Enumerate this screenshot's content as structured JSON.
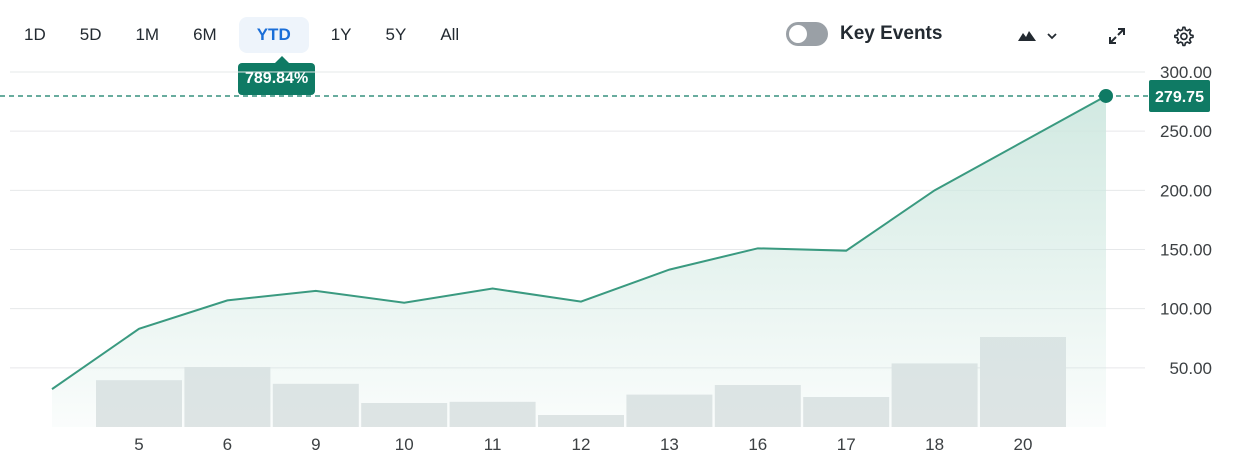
{
  "range_tabs": [
    {
      "label": "1D",
      "active": false
    },
    {
      "label": "5D",
      "active": false
    },
    {
      "label": "1M",
      "active": false
    },
    {
      "label": "6M",
      "active": false
    },
    {
      "label": "YTD",
      "active": true
    },
    {
      "label": "1Y",
      "active": false
    },
    {
      "label": "5Y",
      "active": false
    },
    {
      "label": "All",
      "active": false
    }
  ],
  "change_badge": "789.84%",
  "key_events": {
    "label": "Key Events",
    "enabled": false
  },
  "toolbar_icons": [
    "mountain-chart-icon",
    "chevron-down-icon",
    "expand-icon",
    "gear-icon"
  ],
  "colors": {
    "line": "#3a9a80",
    "area_top": "#d4ebe4",
    "volume": "#dfe3e5",
    "badge": "#0f7a64",
    "active_tab": "#1a6ed8",
    "grid": "#e6e8ea"
  },
  "chart_data": {
    "type": "area",
    "x": [
      "5",
      "6",
      "9",
      "10",
      "11",
      "12",
      "13",
      "16",
      "17",
      "18",
      "20"
    ],
    "price_start": 32,
    "values": [
      83,
      107,
      115,
      105,
      117,
      106,
      133,
      151,
      149,
      200,
      279.75
    ],
    "volume_relative": [
      0.39,
      0.5,
      0.36,
      0.2,
      0.21,
      0.1,
      0.27,
      0.35,
      0.25,
      0.53,
      0.75
    ],
    "y_ticks": [
      "300.00",
      "250.00",
      "200.00",
      "150.00",
      "100.00",
      "50.00"
    ],
    "ylim": [
      0,
      300
    ],
    "last_price": "279.75",
    "grid": true
  }
}
